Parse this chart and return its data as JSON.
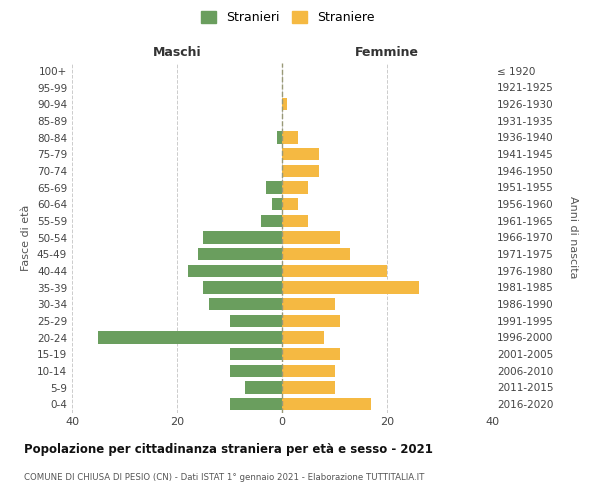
{
  "age_groups": [
    "0-4",
    "5-9",
    "10-14",
    "15-19",
    "20-24",
    "25-29",
    "30-34",
    "35-39",
    "40-44",
    "45-49",
    "50-54",
    "55-59",
    "60-64",
    "65-69",
    "70-74",
    "75-79",
    "80-84",
    "85-89",
    "90-94",
    "95-99",
    "100+"
  ],
  "birth_years": [
    "2016-2020",
    "2011-2015",
    "2006-2010",
    "2001-2005",
    "1996-2000",
    "1991-1995",
    "1986-1990",
    "1981-1985",
    "1976-1980",
    "1971-1975",
    "1966-1970",
    "1961-1965",
    "1956-1960",
    "1951-1955",
    "1946-1950",
    "1941-1945",
    "1936-1940",
    "1931-1935",
    "1926-1930",
    "1921-1925",
    "≤ 1920"
  ],
  "maschi": [
    10,
    7,
    10,
    10,
    35,
    10,
    14,
    15,
    18,
    16,
    15,
    4,
    2,
    3,
    0,
    0,
    1,
    0,
    0,
    0,
    0
  ],
  "femmine": [
    17,
    10,
    10,
    11,
    8,
    11,
    10,
    26,
    20,
    13,
    11,
    5,
    3,
    5,
    7,
    7,
    3,
    0,
    1,
    0,
    0
  ],
  "maschi_color": "#6a9e5e",
  "femmine_color": "#f5b942",
  "title": "Popolazione per cittadinanza straniera per età e sesso - 2021",
  "subtitle": "COMUNE DI CHIUSA DI PESIO (CN) - Dati ISTAT 1° gennaio 2021 - Elaborazione TUTTITALIA.IT",
  "ylabel_left": "Fasce di età",
  "ylabel_right": "Anni di nascita",
  "xlabel_left": "Maschi",
  "xlabel_top_right": "Femmine",
  "legend_maschi": "Stranieri",
  "legend_femmine": "Straniere",
  "xlim": 40,
  "background_color": "#ffffff",
  "grid_color": "#cccccc"
}
